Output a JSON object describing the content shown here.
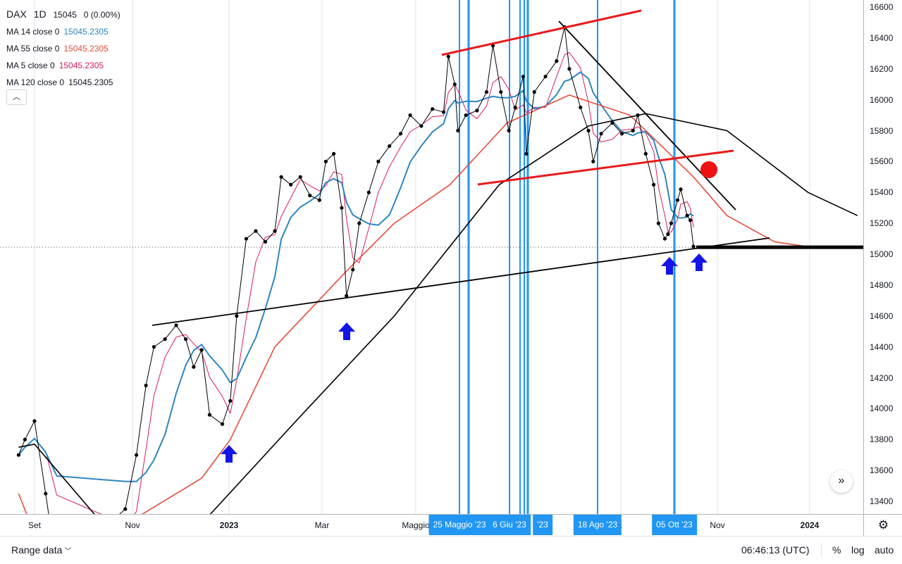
{
  "legend": {
    "symbol": "DAX",
    "interval": "1D",
    "price": "15045",
    "change": "0 (0.00%)",
    "ma_items": [
      {
        "label": "MA 14 close 0",
        "value": "15045.2305",
        "color": "#2e86c1"
      },
      {
        "label": "MA 55 close 0",
        "value": "15045.2305",
        "color": "#e74c3c"
      },
      {
        "label": "MA 5 close 0",
        "value": "15045.2305",
        "color": "#d81b60"
      },
      {
        "label": "MA 120 close 0",
        "value": "15045.2305",
        "color": "#131722"
      }
    ],
    "collapse_icon": "chevron-up-icon"
  },
  "price_axis": {
    "labels": [
      "16600",
      "16400",
      "16200",
      "16000",
      "15800",
      "15600",
      "15400",
      "15200",
      "15000",
      "14800",
      "14600",
      "14400",
      "14200",
      "14000",
      "13800",
      "13600",
      "13400"
    ]
  },
  "time_axis": {
    "labels": [
      {
        "text": "Set",
        "bold": false
      },
      {
        "text": "Nov",
        "bold": false
      },
      {
        "text": "2023",
        "bold": true
      },
      {
        "text": "Mar",
        "bold": false
      },
      {
        "text": "Maggio",
        "bold": false
      },
      {
        "text": "t",
        "bold": false
      },
      {
        "text": "Nov",
        "bold": false
      },
      {
        "text": "2024",
        "bold": true
      }
    ],
    "markers": [
      "25 Maggio '23",
      "6 Giu '23",
      "'23",
      "18 Ago '23",
      "05 Ott '23"
    ]
  },
  "bottom_bar": {
    "range_label": "Range data",
    "clock": "06:46:13 (UTC)",
    "percent": "%",
    "log": "log",
    "auto": "auto"
  },
  "colors": {
    "price": "#000000",
    "ma5": "#d81b60",
    "ma14": "#2e86c1",
    "ma55": "#e74c3c",
    "ma120": "#000000",
    "vertical_marker": "#2196f3",
    "channel": "#e8191b",
    "arrow": "#1414e6"
  },
  "chart_data": {
    "type": "line",
    "symbol": "DAX",
    "interval": "1D",
    "y_axis_range": [
      13300,
      16650
    ],
    "series": [
      {
        "name": "DAX",
        "x": [
          "2022-08-22",
          "2022-08-26",
          "2022-09-01",
          "2022-09-08",
          "2022-09-15",
          "2022-10-28",
          "2022-11-04",
          "2022-11-10",
          "2022-11-15",
          "2022-11-22",
          "2022-11-29",
          "2022-12-05",
          "2022-12-10",
          "2022-12-15",
          "2022-12-20",
          "2022-12-28",
          "2023-01-02",
          "2023-01-06",
          "2023-01-12",
          "2023-01-18",
          "2023-01-24",
          "2023-01-30",
          "2023-02-03",
          "2023-02-09",
          "2023-02-15",
          "2023-02-21",
          "2023-02-27",
          "2023-03-03",
          "2023-03-08",
          "2023-03-13",
          "2023-03-16",
          "2023-03-20",
          "2023-03-24",
          "2023-03-30",
          "2023-04-05",
          "2023-04-12",
          "2023-04-19",
          "2023-04-25",
          "2023-05-02",
          "2023-05-09",
          "2023-05-16",
          "2023-05-19",
          "2023-05-23",
          "2023-05-25",
          "2023-05-30",
          "2023-06-06",
          "2023-06-12",
          "2023-06-16",
          "2023-06-21",
          "2023-06-26",
          "2023-06-30",
          "2023-07-05",
          "2023-07-07",
          "2023-07-12",
          "2023-07-19",
          "2023-07-26",
          "2023-07-31",
          "2023-08-03",
          "2023-08-10",
          "2023-08-15",
          "2023-08-18",
          "2023-08-23",
          "2023-08-30",
          "2023-09-05",
          "2023-09-12",
          "2023-09-15",
          "2023-09-20",
          "2023-09-25",
          "2023-09-28",
          "2023-10-02",
          "2023-10-04",
          "2023-10-06",
          "2023-10-10",
          "2023-10-12",
          "2023-10-16",
          "2023-10-18",
          "2023-10-20"
        ],
        "y": [
          13700,
          13800,
          13920,
          13450,
          12950,
          13350,
          13700,
          14150,
          14400,
          14450,
          14540,
          14450,
          14270,
          14380,
          13960,
          13900,
          14050,
          14600,
          15100,
          15150,
          15080,
          15150,
          15500,
          15450,
          15500,
          15380,
          15350,
          15600,
          15650,
          15300,
          14730,
          14900,
          15200,
          15400,
          15600,
          15700,
          15780,
          15900,
          15830,
          15940,
          15920,
          16280,
          16100,
          15800,
          15900,
          15930,
          16050,
          16350,
          16050,
          15800,
          15950,
          16150,
          15650,
          16050,
          16150,
          16250,
          16470,
          16200,
          15950,
          15800,
          15600,
          15780,
          15850,
          15780,
          15800,
          15900,
          15650,
          15450,
          15200,
          15100,
          15130,
          15200,
          15350,
          15420,
          15250,
          15220,
          15050
        ]
      },
      {
        "name": "MA 55",
        "x": [
          "2022-08-22",
          "2022-09-10",
          "2022-12-15",
          "2023-01-02",
          "2023-01-30",
          "2023-03-15",
          "2023-04-15",
          "2023-05-20",
          "2023-06-25",
          "2023-08-03",
          "2023-09-10",
          "2023-10-20",
          "2023-11-10",
          "2023-12-10",
          "2023-12-30"
        ],
        "y": [
          13450,
          12950,
          13550,
          13800,
          14400,
          14880,
          15200,
          15450,
          15850,
          16030,
          15900,
          15500,
          15250,
          15080,
          15050
        ]
      },
      {
        "name": "MA 120",
        "x": [
          "2022-08-22",
          "2022-09-01",
          "2022-10-10",
          "2022-12-10",
          "2023-02-15",
          "2023-04-15",
          "2023-06-20",
          "2023-08-15",
          "2023-09-20",
          "2023-11-10",
          "2023-12-31",
          "2024-01-31"
        ],
        "y": [
          13750,
          13770,
          13300,
          13200,
          13950,
          14600,
          15450,
          15830,
          15910,
          15800,
          15400,
          15250
        ]
      }
    ],
    "horizontal_reference": 15045,
    "marked_dates": [
      "25 Maggio '23",
      "6 Giu '23",
      "18 Ago '23",
      "05 Ott '23"
    ],
    "annotations": "trendlines, red channel lines, red dot near 15550, blue up arrows"
  }
}
